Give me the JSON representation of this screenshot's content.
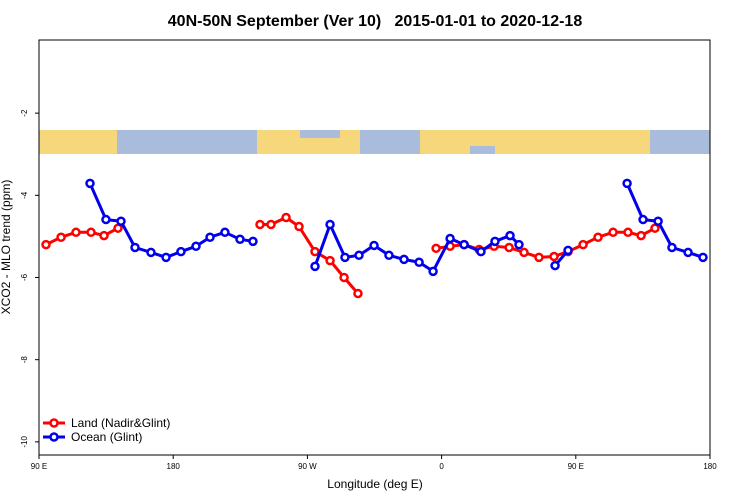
{
  "chart_data": {
    "type": "line",
    "title": "40N-50N September (Ver 10)   2015-01-01 to 2020-12-18",
    "x_label": "Longitude (deg E)",
    "y_label": "XCO2 - MLO trend (ppm)",
    "xlim": [
      90,
      540
    ],
    "ylim": [
      -10.32,
      -0.22
    ],
    "xticks": [
      {
        "value": 90,
        "label": "90 E"
      },
      180,
      {
        "value": 270,
        "label": "90 W"
      },
      {
        "value": 360,
        "label": "0"
      },
      {
        "value": 450,
        "label": "90 E"
      },
      {
        "value": 540,
        "label": "180"
      }
    ],
    "yticks": [
      -2,
      -4,
      -6,
      -8,
      -10
    ],
    "legend": "bottom-left",
    "series": [
      {
        "name": "Land (Nadir&Glint)",
        "color": "#ff0000",
        "x": [
          94.7,
          104.8,
          114.8,
          124.9,
          133.6,
          143.0,
          null,
          238.2,
          245.6,
          255.7,
          264.4,
          275.1,
          285.2,
          294.6,
          303.9,
          null,
          356.3,
          365.7,
          375.1,
          385.2,
          395.2,
          405.3,
          415.3,
          425.3,
          435.4,
          444.8,
          454.9,
          464.9,
          475.0,
          485.0,
          493.8,
          503.1
        ],
        "values": [
          -5.2,
          -5.02,
          -4.9,
          -4.9,
          -4.98,
          -4.8,
          null,
          -4.71,
          -4.71,
          -4.54,
          -4.76,
          -5.37,
          -5.59,
          -6.0,
          -6.39,
          null,
          -5.29,
          -5.24,
          -5.2,
          -5.32,
          -5.24,
          -5.27,
          -5.39,
          -5.51,
          -5.49,
          -5.37,
          -5.2,
          -5.02,
          -4.9,
          -4.9,
          -4.98,
          -4.8
        ]
      },
      {
        "name": "Ocean (Glint)",
        "color": "#0000ee",
        "x": [
          124.2,
          134.9,
          145.0,
          154.4,
          165.1,
          175.2,
          185.2,
          195.3,
          204.7,
          214.7,
          224.8,
          233.5,
          null,
          275.1,
          285.2,
          295.2,
          304.6,
          314.7,
          324.7,
          334.8,
          344.9,
          354.3,
          365.7,
          375.1,
          386.4,
          395.8,
          405.9,
          411.9,
          null,
          436.1,
          444.8,
          null,
          484.4,
          495.1,
          505.2,
          514.5,
          525.3,
          535.3
        ],
        "values": [
          -3.71,
          -4.59,
          -4.63,
          -5.27,
          -5.39,
          -5.51,
          -5.37,
          -5.24,
          -5.02,
          -4.9,
          -5.07,
          -5.12,
          null,
          -5.73,
          -4.71,
          -5.51,
          -5.46,
          -5.22,
          -5.46,
          -5.56,
          -5.63,
          -5.85,
          -5.05,
          -5.2,
          -5.37,
          -5.12,
          -4.98,
          -5.2,
          null,
          -5.71,
          -5.34,
          null,
          -3.71,
          -4.59,
          -4.63,
          -5.27,
          -5.39,
          -5.51
        ]
      }
    ]
  }
}
